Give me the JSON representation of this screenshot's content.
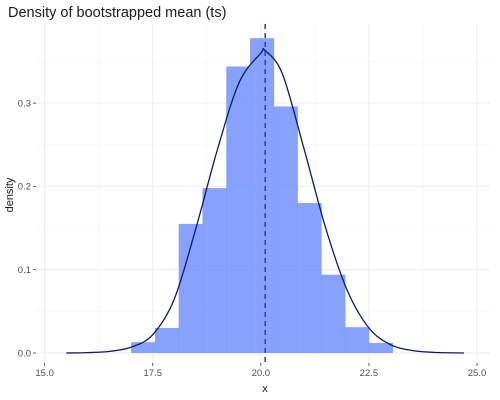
{
  "chart_data": {
    "type": "bar",
    "title": "Density of bootstrapped mean (ts)",
    "xlabel": "x",
    "ylabel": "density",
    "xlim": [
      14.8,
      25.3
    ],
    "ylim": [
      -0.012,
      0.395
    ],
    "x_ticks": [
      15.0,
      17.5,
      20.0,
      22.5,
      25.0
    ],
    "x_tick_labels": [
      "15.0",
      "17.5",
      "20.0",
      "22.5",
      "25.0"
    ],
    "y_ticks": [
      0.0,
      0.1,
      0.2,
      0.3
    ],
    "y_tick_labels": [
      "0.0",
      "0.1",
      "0.2",
      "0.3"
    ],
    "grid": true,
    "histogram": {
      "bin_width": 0.55,
      "bins": [
        {
          "x0": 17.0,
          "x1": 17.55,
          "density": 0.013
        },
        {
          "x0": 17.55,
          "x1": 18.1,
          "density": 0.03
        },
        {
          "x0": 18.1,
          "x1": 18.65,
          "density": 0.155
        },
        {
          "x0": 18.65,
          "x1": 19.2,
          "density": 0.198
        },
        {
          "x0": 19.2,
          "x1": 19.75,
          "density": 0.344
        },
        {
          "x0": 19.75,
          "x1": 20.3,
          "density": 0.378
        },
        {
          "x0": 20.3,
          "x1": 20.85,
          "density": 0.296
        },
        {
          "x0": 20.85,
          "x1": 21.4,
          "density": 0.18
        },
        {
          "x0": 21.4,
          "x1": 21.95,
          "density": 0.094
        },
        {
          "x0": 21.95,
          "x1": 22.5,
          "density": 0.031
        },
        {
          "x0": 22.5,
          "x1": 23.05,
          "density": 0.012
        }
      ]
    },
    "density_curve": {
      "x": [
        15.5,
        16.0,
        16.5,
        17.0,
        17.5,
        18.0,
        18.5,
        19.0,
        19.5,
        20.0,
        20.1,
        20.5,
        21.0,
        21.5,
        22.0,
        22.5,
        23.0,
        23.5,
        24.0,
        24.7
      ],
      "y": [
        0.0,
        0.0005,
        0.002,
        0.007,
        0.022,
        0.065,
        0.15,
        0.245,
        0.325,
        0.36,
        0.363,
        0.335,
        0.245,
        0.15,
        0.075,
        0.03,
        0.01,
        0.003,
        0.0008,
        0.0
      ]
    },
    "mean_line": {
      "x": 20.1,
      "style": "dashed"
    }
  }
}
